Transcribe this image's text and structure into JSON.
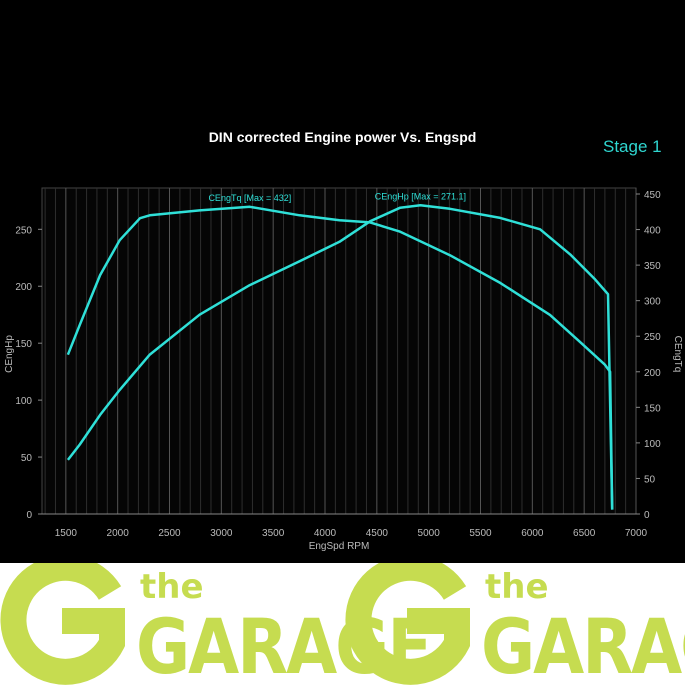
{
  "chart_data": {
    "type": "line",
    "title": "DIN corrected Engine power Vs. Engspd",
    "annotation": "Stage 1",
    "xlabel": "EngSpd RPM",
    "ylabel_left": "CEngHp",
    "ylabel_right": "CEngTq",
    "xlim": [
      1270,
      7000
    ],
    "ylim_left": [
      0,
      281
    ],
    "ylim_right": [
      0,
      450
    ],
    "x_ticks": [
      1500,
      2000,
      2500,
      3000,
      3500,
      4000,
      4500,
      5000,
      5500,
      6000,
      6500,
      7000
    ],
    "y_ticks_left": [
      0,
      50,
      100,
      150,
      200,
      250
    ],
    "y_ticks_right": [
      0,
      50,
      100,
      150,
      200,
      250,
      300,
      350,
      400,
      450
    ],
    "grid": true,
    "line_color": "#2fe0d8",
    "series": [
      {
        "name": "CEngTq [Max = 432]",
        "axis": "right",
        "x": [
          1520,
          1635,
          1830,
          2020,
          2215,
          2310,
          2790,
          3275,
          3755,
          4140,
          4435,
          4725,
          5205,
          5690,
          6170,
          6460,
          6700,
          6750,
          6770
        ],
        "y": [
          224,
          266,
          336,
          385,
          416,
          420,
          427,
          432,
          420,
          413,
          410,
          397,
          364,
          325,
          280,
          242,
          210,
          200,
          6
        ]
      },
      {
        "name": "CEngHp [Max = 271.1]",
        "axis": "left",
        "x": [
          1520,
          1635,
          1830,
          2020,
          2310,
          2790,
          3275,
          3755,
          4140,
          4435,
          4725,
          4920,
          5205,
          5690,
          6075,
          6365,
          6605,
          6730,
          6770
        ],
        "y": [
          47.5,
          61,
          87,
          109,
          140,
          175,
          201,
          222,
          239,
          257,
          269,
          271.1,
          268,
          260,
          250,
          228,
          206,
          193,
          4
        ]
      }
    ]
  },
  "footer": {
    "logos": [
      {
        "the": "the",
        "garage": "GARAGE"
      },
      {
        "the": "the",
        "garage": "GARAGE"
      }
    ],
    "logo_color": "#c6dc50"
  }
}
